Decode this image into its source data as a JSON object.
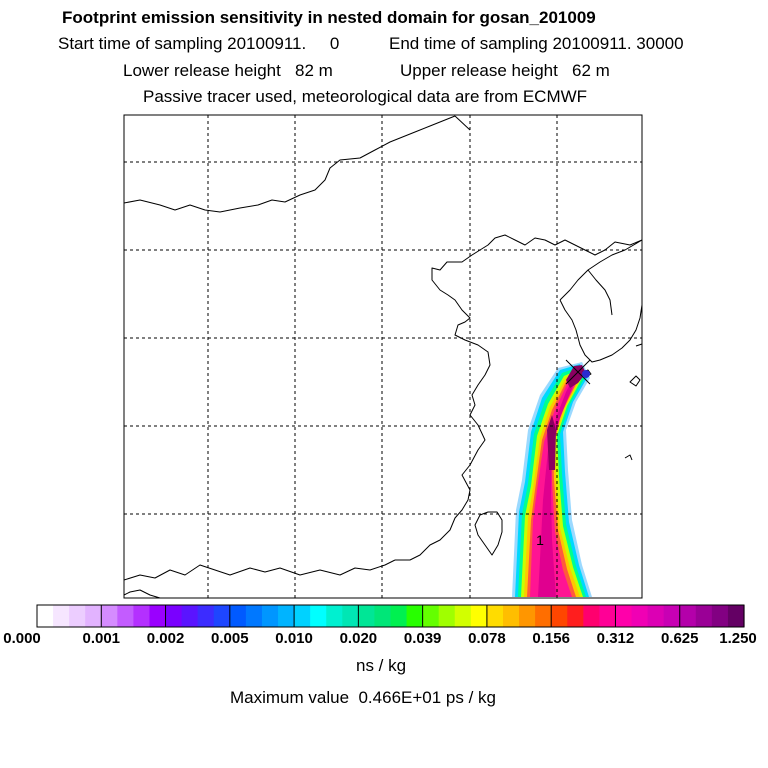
{
  "header": {
    "title": "Footprint emission sensitivity in nested domain for gosan_201009",
    "start_label": "Start time of sampling 20100911.     0",
    "end_label": "End time of sampling 20100911. 30000",
    "lower_release": "Lower release height   82 m",
    "upper_release": "Upper release height   62 m",
    "tracer_note": "Passive tracer used, meteorological data are from ECMWF"
  },
  "map": {
    "release_marker": "1",
    "plume_colors": [
      "#9bd9ff",
      "#00d8ff",
      "#00ff90",
      "#c8ff00",
      "#ffc800",
      "#ff5a3c",
      "#ff1493",
      "#e0008f",
      "#8a0060"
    ]
  },
  "colorbar": {
    "swatches": [
      "#ffffff",
      "#f6e6ff",
      "#eccdff",
      "#e2b3ff",
      "#d58cff",
      "#c35cff",
      "#b430ff",
      "#9a00ff",
      "#7a00ff",
      "#5a14ff",
      "#3c2cff",
      "#1e46ff",
      "#005aff",
      "#0078ff",
      "#0096ff",
      "#00b4ff",
      "#00d2ff",
      "#00ffff",
      "#00f0d0",
      "#00e6b4",
      "#00e696",
      "#00e678",
      "#00f050",
      "#28ff00",
      "#64ff00",
      "#a0ff00",
      "#d2ff00",
      "#ffff00",
      "#ffdc00",
      "#ffbe00",
      "#ff9600",
      "#ff6e00",
      "#ff4600",
      "#ff1e1e",
      "#ff006e",
      "#ff0096",
      "#ff00aa",
      "#f000b4",
      "#dc00b4",
      "#c800b4",
      "#b400aa",
      "#9a0096",
      "#820082",
      "#640064"
    ],
    "ticks": [
      "0.000",
      "0.001",
      "0.002",
      "0.005",
      "0.010",
      "0.020",
      "0.039",
      "0.078",
      "0.156",
      "0.312",
      "0.625",
      "1.250"
    ],
    "unit_label": "ns / kg",
    "max_value": "Maximum value  0.466E+01 ps / kg"
  }
}
